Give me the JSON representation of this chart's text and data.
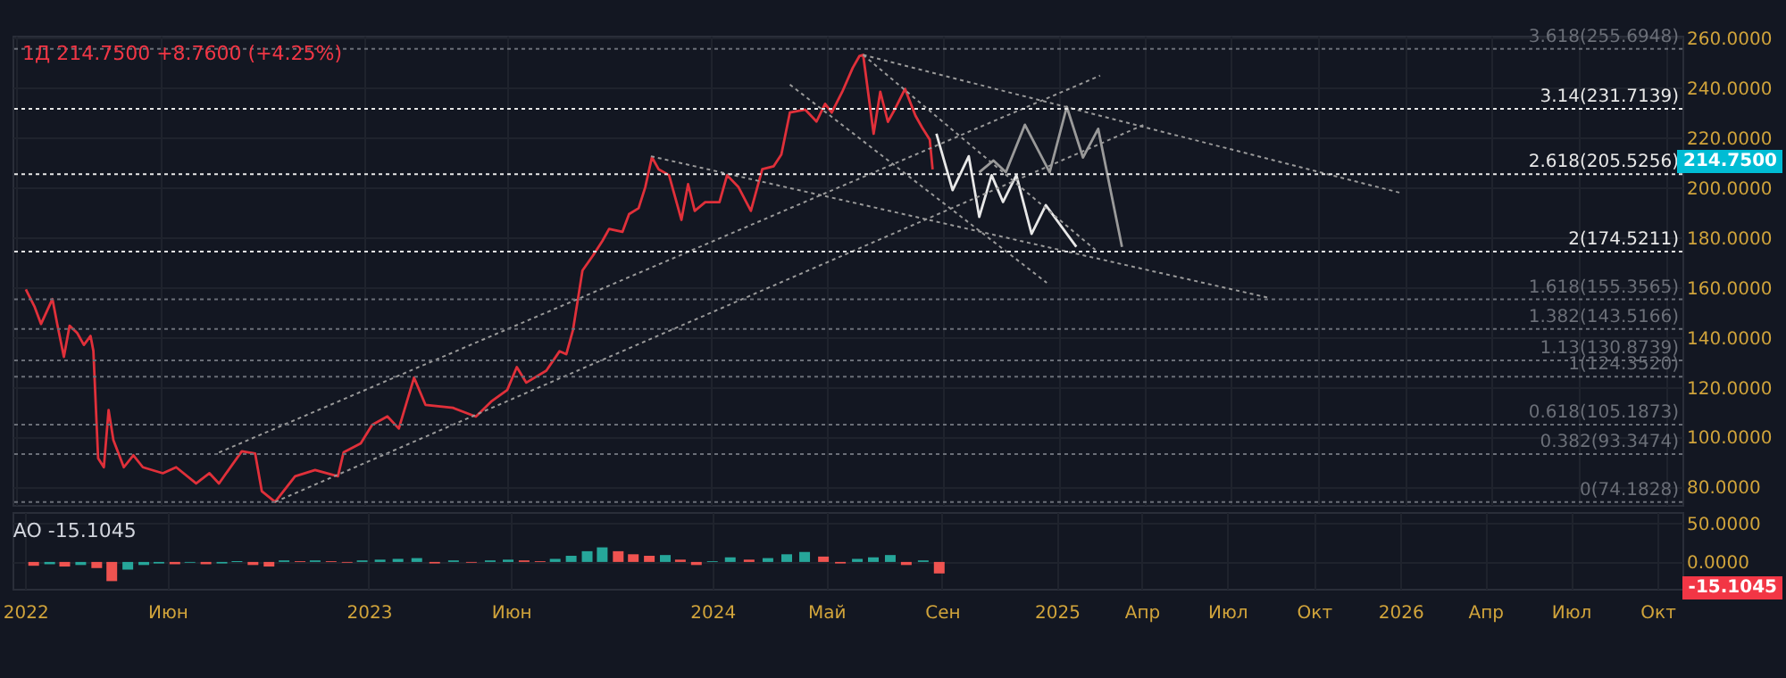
{
  "chart_data": [
    {
      "type": "line",
      "title": "1Д 214.7500 +8.7600 (+4.25%)",
      "xlim": [
        "2021-12-28",
        "2026-10-18"
      ],
      "xticks": [
        {
          "value": "2022-01-01",
          "label": null
        },
        {
          "value": "2022-06-01",
          "label": null
        },
        {
          "value": "2023-01-01",
          "label": null
        },
        {
          "value": "2023-06-01",
          "label": null
        },
        {
          "value": "2024-01-01",
          "label": null
        },
        {
          "value": "2024-05-01",
          "label": null
        },
        {
          "value": "2024-09-01",
          "label": null
        },
        {
          "value": "2025-01-01",
          "label": null
        },
        {
          "value": "2025-04-01",
          "label": null
        },
        {
          "value": "2025-07-01",
          "label": null
        },
        {
          "value": "2025-10-01",
          "label": null
        },
        {
          "value": "2026-01-01",
          "label": null
        },
        {
          "value": "2026-04-01",
          "label": null
        },
        {
          "value": "2026-07-01",
          "label": null
        },
        {
          "value": "2026-10-01",
          "label": null
        }
      ],
      "ylim": [
        73,
        261
      ],
      "yticks": [
        {
          "value": 80,
          "label": "80.0000"
        },
        {
          "value": 100,
          "label": "100.0000"
        },
        {
          "value": 120,
          "label": "120.0000"
        },
        {
          "value": 140,
          "label": "140.0000"
        },
        {
          "value": 160,
          "label": "160.0000"
        },
        {
          "value": 180,
          "label": "180.0000"
        },
        {
          "value": 200,
          "label": "200.0000"
        },
        {
          "value": 220,
          "label": "220.0000"
        },
        {
          "value": 240,
          "label": "240.0000"
        },
        {
          "value": 260,
          "label": "260.0000"
        }
      ],
      "tick_labels": "y",
      "grid": true,
      "series": [
        {
          "color": "#e0303a",
          "line_style": "solid",
          "x": [
            "2022-01-11",
            "2022-01-20",
            "2022-01-27",
            "2022-02-08",
            "2022-02-13",
            "2022-02-20",
            "2022-02-26",
            "2022-03-06",
            "2022-03-13",
            "2022-03-20",
            "2022-03-23",
            "2022-03-28",
            "2022-04-03",
            "2022-04-08",
            "2022-04-13",
            "2022-04-24",
            "2022-05-04",
            "2022-05-14",
            "2022-06-04",
            "2022-06-18",
            "2022-07-09",
            "2022-07-23",
            "2022-08-02",
            "2022-08-12",
            "2022-08-26",
            "2022-09-09",
            "2022-09-16",
            "2022-09-30",
            "2022-10-21",
            "2022-11-11",
            "2022-12-05",
            "2022-12-11",
            "2022-12-29",
            "2023-01-10",
            "2023-01-26",
            "2023-02-07",
            "2023-02-23",
            "2023-03-07",
            "2023-04-05",
            "2023-04-29",
            "2023-05-15",
            "2023-06-01",
            "2023-06-11",
            "2023-06-21",
            "2023-07-12",
            "2023-07-26",
            "2023-08-02",
            "2023-08-09",
            "2023-08-14",
            "2023-08-19",
            "2023-08-30",
            "2023-09-09",
            "2023-09-16",
            "2023-09-30",
            "2023-10-07",
            "2023-10-17",
            "2023-10-24",
            "2023-10-31",
            "2023-11-07",
            "2023-11-18",
            "2023-12-01",
            "2023-12-08",
            "2023-12-15",
            "2023-12-26",
            "2024-01-10",
            "2024-01-18",
            "2024-01-30",
            "2024-02-12",
            "2024-02-24",
            "2024-03-07",
            "2024-03-15",
            "2024-03-24",
            "2024-04-09",
            "2024-04-21",
            "2024-04-30",
            "2024-05-07",
            "2024-05-18",
            "2024-05-29",
            "2024-06-05",
            "2024-06-09",
            "2024-06-20",
            "2024-06-27",
            "2024-07-05",
            "2024-07-12",
            "2024-07-23",
            "2024-08-03",
            "2024-08-10",
            "2024-08-18",
            "2024-08-21"
          ],
          "values": [
            159.4,
            152.6,
            145.5,
            155.5,
            145.5,
            132.3,
            144.8,
            141.9,
            137.1,
            140.7,
            134.7,
            91.7,
            88.1,
            111,
            99,
            88.1,
            92.9,
            88.1,
            85.7,
            88.1,
            81.6,
            85.7,
            81.6,
            87,
            94.5,
            93.6,
            78.5,
            74.2,
            84.5,
            87,
            84.5,
            94.1,
            97.7,
            105.1,
            108.5,
            103.6,
            124,
            113.1,
            111.9,
            108.4,
            114.4,
            119.1,
            128.2,
            122,
            126.8,
            134.6,
            133.4,
            143,
            154.9,
            166.9,
            172.9,
            178.8,
            183.6,
            182.4,
            189.5,
            191.9,
            200.3,
            212.3,
            207.5,
            205.1,
            187.2,
            201.5,
            190.8,
            194.3,
            194.3,
            205.1,
            200.3,
            190.8,
            207.5,
            208.7,
            213.4,
            230.2,
            231.4,
            226.6,
            233.7,
            230.2,
            238.5,
            248.1,
            252.8,
            253.3,
            221.7,
            238.5,
            226.5,
            231.3,
            239.7,
            228.9,
            224.2,
            219.4,
            207.4
          ]
        },
        {
          "color": "#e8e8e8",
          "line_style": "solid",
          "x": [
            "2024-08-25",
            "2024-09-11",
            "2024-09-28",
            "2024-10-09",
            "2024-10-22",
            "2024-11-03",
            "2024-11-17",
            "2024-12-03",
            "2024-12-18",
            "2025-01-19"
          ],
          "values": [
            221.7,
            199.1,
            212.7,
            188.4,
            205.1,
            194.4,
            205.1,
            181.6,
            193.1,
            176.4
          ]
        },
        {
          "color": "#9a9a9a",
          "line_style": "solid",
          "x": [
            "2024-10-09",
            "2024-10-24",
            "2024-11-06",
            "2024-11-26",
            "2024-12-22",
            "2025-01-09",
            "2025-01-26",
            "2025-02-11",
            "2025-03-08"
          ],
          "values": [
            206.3,
            211,
            206.3,
            225.3,
            206.3,
            232.5,
            212.2,
            223.7,
            176.4
          ]
        },
        {
          "color": "#9a9a9a",
          "line_style": "dotted",
          "x": [
            "2022-08-02",
            "2025-02-13"
          ],
          "values": [
            94,
            245
          ]
        },
        {
          "color": "#9a9a9a",
          "line_style": "dotted",
          "x": [
            "2022-09-30",
            "2025-03-31"
          ],
          "values": [
            74.2,
            225.3
          ]
        },
        {
          "color": "#9a9a9a",
          "line_style": "dotted",
          "x": [
            "2023-10-30",
            "2025-08-08"
          ],
          "values": [
            212.7,
            156.1
          ]
        },
        {
          "color": "#9a9a9a",
          "line_style": "dotted",
          "x": [
            "2024-06-09",
            "2025-12-27"
          ],
          "values": [
            253.3,
            197.9
          ]
        },
        {
          "color": "#9a9a9a",
          "line_style": "dotted",
          "x": [
            "2024-06-09",
            "2025-02-08"
          ],
          "values": [
            253.3,
            175.2
          ]
        },
        {
          "color": "#9a9a9a",
          "line_style": "dotted",
          "x": [
            "2024-03-24",
            "2024-12-19"
          ],
          "values": [
            241.4,
            162
          ]
        }
      ],
      "ref_lines": [
        {
          "axis": "y",
          "value": 255.6948,
          "label": "3.618(255.6948)",
          "color": "#6b6f78",
          "line_style": "dotted"
        },
        {
          "axis": "y",
          "value": 231.7139,
          "label": "3.14(231.7139)",
          "color": "#e8e8e8",
          "line_style": "dotted"
        },
        {
          "axis": "y",
          "value": 205.5256,
          "label": "2.618(205.5256)",
          "color": "#e8e8e8",
          "line_style": "dotted"
        },
        {
          "axis": "y",
          "value": 174.5211,
          "label": "2(174.5211)",
          "color": "#e8e8e8",
          "line_style": "dotted"
        },
        {
          "axis": "y",
          "value": 155.3565,
          "label": "1.618(155.3565)",
          "color": "#6b6f78",
          "line_style": "dotted"
        },
        {
          "axis": "y",
          "value": 143.5166,
          "label": "1.382(143.5166)",
          "color": "#6b6f78",
          "line_style": "dotted"
        },
        {
          "axis": "y",
          "value": 130.8739,
          "label": "1.13(130.8739)",
          "color": "#6b6f78",
          "line_style": "dotted"
        },
        {
          "axis": "y",
          "value": 124.352,
          "label": "1(124.3520)",
          "color": "#6b6f78",
          "line_style": "dotted"
        },
        {
          "axis": "y",
          "value": 105.1873,
          "label": "0.618(105.1873)",
          "color": "#6b6f78",
          "line_style": "dotted"
        },
        {
          "axis": "y",
          "value": 93.3474,
          "label": "0.382(93.3474)",
          "color": "#6b6f78",
          "line_style": "dotted"
        },
        {
          "axis": "y",
          "value": 74.1828,
          "label": "0(74.1828)",
          "color": "#6b6f78",
          "line_style": "dotted"
        }
      ],
      "annotations": [
        "214.7500"
      ]
    },
    {
      "type": "bar",
      "title": "AO  -15.1045",
      "xlim": [
        "2021-12-28",
        "2026-10-18"
      ],
      "xticks": [
        {
          "value": "2022-01-01",
          "label": "2022"
        },
        {
          "value": "2022-06-01",
          "label": "Июн"
        },
        {
          "value": "2023-01-01",
          "label": "2023"
        },
        {
          "value": "2023-06-01",
          "label": "Июн"
        },
        {
          "value": "2024-01-01",
          "label": "2024"
        },
        {
          "value": "2024-05-01",
          "label": "Май"
        },
        {
          "value": "2024-09-01",
          "label": "Сен"
        },
        {
          "value": "2025-01-01",
          "label": "2025"
        },
        {
          "value": "2025-04-01",
          "label": "Апр"
        },
        {
          "value": "2025-07-01",
          "label": "Июл"
        },
        {
          "value": "2025-10-01",
          "label": "Окт"
        },
        {
          "value": "2026-01-01",
          "label": "2026"
        },
        {
          "value": "2026-04-01",
          "label": "Апр"
        },
        {
          "value": "2026-07-01",
          "label": "Июл"
        },
        {
          "value": "2026-10-01",
          "label": "Окт"
        }
      ],
      "ylim": [
        -35,
        65
      ],
      "yticks": [
        {
          "value": 0,
          "label": "0.0000"
        },
        {
          "value": 50,
          "label": "50.0000"
        }
      ],
      "grid": true,
      "x": [
        "2022-01-10",
        "2022-01-27",
        "2022-02-12",
        "2022-03-01",
        "2022-03-18",
        "2022-04-03",
        "2022-04-20",
        "2022-05-07",
        "2022-05-23",
        "2022-06-09",
        "2022-06-25",
        "2022-07-12",
        "2022-07-29",
        "2022-08-14",
        "2022-08-31",
        "2022-09-17",
        "2022-10-03",
        "2022-10-20",
        "2022-11-05",
        "2022-11-22",
        "2022-12-09",
        "2022-12-25",
        "2023-01-13",
        "2023-02-01",
        "2023-02-21",
        "2023-03-12",
        "2023-04-01",
        "2023-04-20",
        "2023-05-10",
        "2023-05-29",
        "2023-06-15",
        "2023-07-02",
        "2023-07-18",
        "2023-08-04",
        "2023-08-21",
        "2023-09-06",
        "2023-09-23",
        "2023-10-09",
        "2023-10-26",
        "2023-11-12",
        "2023-11-28",
        "2023-12-15",
        "2024-01-01",
        "2024-01-20",
        "2024-02-09",
        "2024-02-29",
        "2024-03-20",
        "2024-04-08",
        "2024-04-28",
        "2024-05-16",
        "2024-06-03",
        "2024-06-20",
        "2024-07-08",
        "2024-07-25",
        "2024-08-12",
        "2024-08-29"
      ],
      "values": [
        -5,
        -3,
        -6,
        -4,
        -8,
        -25,
        -10,
        -4,
        -2,
        -3,
        -1,
        -3,
        -2,
        1,
        -4,
        -6,
        2,
        1,
        2,
        1,
        -1,
        2,
        3,
        4,
        5,
        -2,
        2,
        -1,
        2,
        3,
        2,
        1,
        4,
        8,
        14,
        19,
        14,
        10,
        8,
        9,
        3,
        -4,
        1,
        6,
        3,
        5,
        10,
        13,
        7,
        -2,
        4,
        6,
        9,
        -4,
        2,
        -15
      ],
      "colors": [
        "#ef5350",
        "#26a69a",
        "#ef5350",
        "#26a69a",
        "#ef5350",
        "#ef5350",
        "#26a69a",
        "#26a69a",
        "#26a69a",
        "#ef5350",
        "#26a69a",
        "#ef5350",
        "#26a69a",
        "#26a69a",
        "#ef5350",
        "#ef5350",
        "#26a69a",
        "#ef5350",
        "#26a69a",
        "#ef5350",
        "#ef5350",
        "#26a69a",
        "#26a69a",
        "#26a69a",
        "#26a69a",
        "#ef5350",
        "#26a69a",
        "#ef5350",
        "#26a69a",
        "#26a69a",
        "#ef5350",
        "#ef5350",
        "#26a69a",
        "#26a69a",
        "#26a69a",
        "#26a69a",
        "#ef5350",
        "#ef5350",
        "#ef5350",
        "#26a69a",
        "#ef5350",
        "#ef5350",
        "#26a69a",
        "#26a69a",
        "#ef5350",
        "#26a69a",
        "#26a69a",
        "#26a69a",
        "#ef5350",
        "#ef5350",
        "#26a69a",
        "#26a69a",
        "#26a69a",
        "#ef5350",
        "#26a69a",
        "#ef5350"
      ],
      "annotations": [
        "-15.1045"
      ]
    }
  ]
}
